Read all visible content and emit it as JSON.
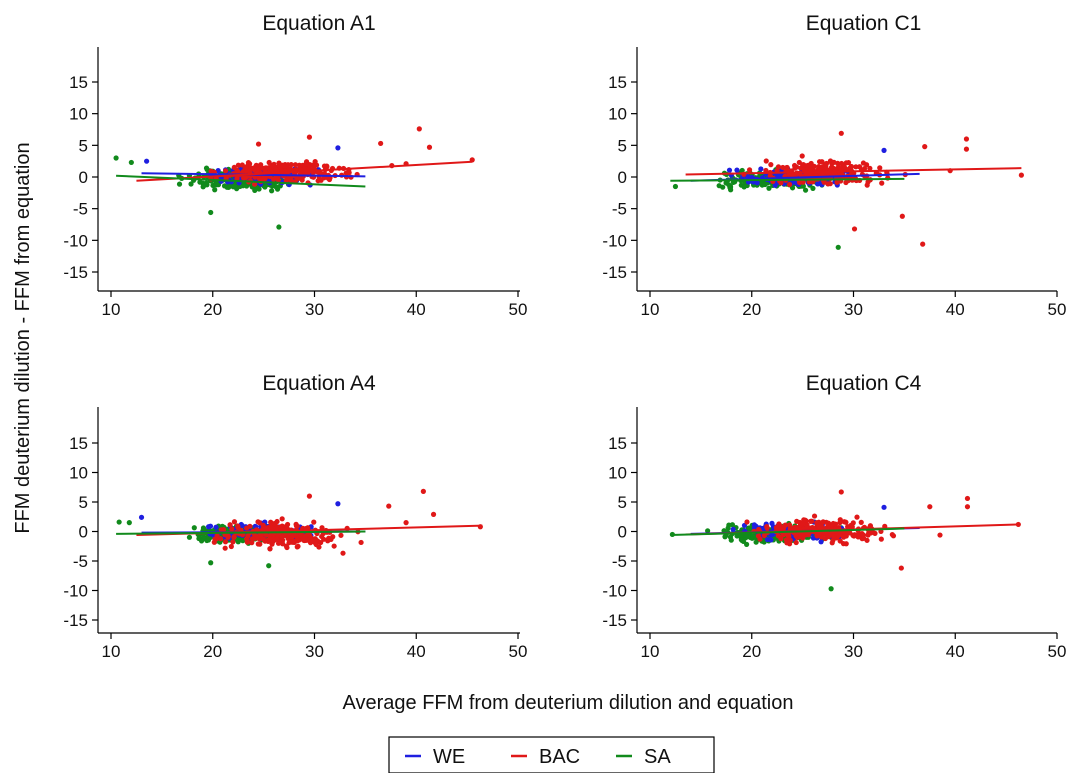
{
  "chart_data": [
    {
      "type": "scatter",
      "title": "Equation A1",
      "xlim": [
        10,
        50
      ],
      "ylim": [
        -15,
        15
      ],
      "xticks": [
        10,
        20,
        30,
        40,
        50
      ],
      "yticks": [
        -15,
        -10,
        -5,
        0,
        5,
        10,
        15
      ],
      "series": [
        {
          "name": "WE",
          "fit": {
            "x": [
              13,
              35
            ],
            "y": [
              0.6,
              0.1
            ]
          }
        },
        {
          "name": "BAC",
          "fit": {
            "x": [
              12.5,
              45.5
            ],
            "y": [
              -0.6,
              2.4
            ]
          }
        },
        {
          "name": "SA",
          "fit": {
            "x": [
              10.5,
              35
            ],
            "y": [
              0.2,
              -1.5
            ]
          }
        }
      ],
      "outliers": [
        {
          "series": "BAC",
          "x": 40.3,
          "y": 7.6
        },
        {
          "series": "BAC",
          "x": 41.3,
          "y": 4.7
        },
        {
          "series": "BAC",
          "x": 36.5,
          "y": 5.3
        },
        {
          "series": "BAC",
          "x": 29.5,
          "y": 6.3
        },
        {
          "series": "BAC",
          "x": 45.5,
          "y": 2.7
        },
        {
          "series": "BAC",
          "x": 39.0,
          "y": 2.1
        },
        {
          "series": "BAC",
          "x": 37.6,
          "y": 1.8
        },
        {
          "series": "BAC",
          "x": 24.5,
          "y": 5.2
        },
        {
          "series": "WE",
          "x": 32.3,
          "y": 4.6
        },
        {
          "series": "WE",
          "x": 13.5,
          "y": 2.5
        },
        {
          "series": "SA",
          "x": 10.5,
          "y": 3.0
        },
        {
          "series": "SA",
          "x": 12.0,
          "y": 2.3
        },
        {
          "series": "SA",
          "x": 19.8,
          "y": -5.6
        },
        {
          "series": "SA",
          "x": 26.5,
          "y": -7.9
        }
      ],
      "cloud": [
        {
          "series": "SA",
          "xmin": 15.5,
          "xmax": 30.0,
          "ymin": -2.6,
          "ymax": 1.8,
          "n": 240
        },
        {
          "series": "WE",
          "xmin": 17.0,
          "xmax": 32.0,
          "ymin": -2.0,
          "ymax": 2.2,
          "n": 120
        },
        {
          "series": "BAC",
          "xmin": 18.0,
          "xmax": 36.0,
          "ymin": -1.8,
          "ymax": 3.4,
          "n": 220
        }
      ]
    },
    {
      "type": "scatter",
      "title": "Equation C1",
      "xlim": [
        10,
        50
      ],
      "ylim": [
        -15,
        15
      ],
      "xticks": [
        10,
        20,
        30,
        40,
        50
      ],
      "yticks": [
        -15,
        -10,
        -5,
        0,
        5,
        10,
        15
      ],
      "series": [
        {
          "name": "WE",
          "fit": {
            "x": [
              14,
              36.5
            ],
            "y": [
              -0.6,
              0.5
            ]
          }
        },
        {
          "name": "BAC",
          "fit": {
            "x": [
              13.5,
              46.5
            ],
            "y": [
              0.4,
              1.4
            ]
          }
        },
        {
          "name": "SA",
          "fit": {
            "x": [
              12,
              35
            ],
            "y": [
              -0.6,
              -0.3
            ]
          }
        }
      ],
      "outliers": [
        {
          "series": "BAC",
          "x": 28.8,
          "y": 6.9
        },
        {
          "series": "BAC",
          "x": 41.1,
          "y": 6.0
        },
        {
          "series": "BAC",
          "x": 41.1,
          "y": 4.4
        },
        {
          "series": "BAC",
          "x": 37.0,
          "y": 4.8
        },
        {
          "series": "BAC",
          "x": 30.1,
          "y": -8.2
        },
        {
          "series": "BAC",
          "x": 36.8,
          "y": -10.6
        },
        {
          "series": "BAC",
          "x": 34.8,
          "y": -6.2
        },
        {
          "series": "BAC",
          "x": 46.5,
          "y": 0.3
        },
        {
          "series": "BAC",
          "x": 39.5,
          "y": 1.0
        },
        {
          "series": "WE",
          "x": 33.0,
          "y": 4.2
        },
        {
          "series": "SA",
          "x": 28.5,
          "y": -11.1
        },
        {
          "series": "SA",
          "x": 12.5,
          "y": -1.5
        }
      ],
      "cloud": [
        {
          "series": "SA",
          "xmin": 14.5,
          "xmax": 30.0,
          "ymin": -2.4,
          "ymax": 1.6,
          "n": 240
        },
        {
          "series": "WE",
          "xmin": 16.0,
          "xmax": 33.0,
          "ymin": -2.0,
          "ymax": 2.0,
          "n": 120
        },
        {
          "series": "BAC",
          "xmin": 18.0,
          "xmax": 36.0,
          "ymin": -2.2,
          "ymax": 3.6,
          "n": 220
        }
      ]
    },
    {
      "type": "scatter",
      "title": "Equation A4",
      "xlim": [
        10,
        50
      ],
      "ylim": [
        -15,
        15
      ],
      "xticks": [
        10,
        20,
        30,
        40,
        50
      ],
      "yticks": [
        -15,
        -10,
        -5,
        0,
        5,
        10,
        15
      ],
      "series": [
        {
          "name": "WE",
          "fit": {
            "x": [
              13,
              35
            ],
            "y": [
              -0.2,
              0.0
            ]
          }
        },
        {
          "name": "BAC",
          "fit": {
            "x": [
              12.5,
              46.5
            ],
            "y": [
              -0.6,
              1.0
            ]
          }
        },
        {
          "name": "SA",
          "fit": {
            "x": [
              10.5,
              35
            ],
            "y": [
              -0.4,
              0.0
            ]
          }
        }
      ],
      "outliers": [
        {
          "series": "BAC",
          "x": 40.7,
          "y": 6.8
        },
        {
          "series": "BAC",
          "x": 41.7,
          "y": 2.9
        },
        {
          "series": "BAC",
          "x": 37.3,
          "y": 4.3
        },
        {
          "series": "BAC",
          "x": 29.5,
          "y": 6.0
        },
        {
          "series": "BAC",
          "x": 46.3,
          "y": 0.8
        },
        {
          "series": "BAC",
          "x": 39.0,
          "y": 1.5
        },
        {
          "series": "WE",
          "x": 32.3,
          "y": 4.7
        },
        {
          "series": "WE",
          "x": 13.0,
          "y": 2.4
        },
        {
          "series": "SA",
          "x": 10.8,
          "y": 1.6
        },
        {
          "series": "SA",
          "x": 11.8,
          "y": 1.5
        },
        {
          "series": "SA",
          "x": 19.8,
          "y": -5.3
        },
        {
          "series": "SA",
          "x": 25.5,
          "y": -5.8
        }
      ],
      "cloud": [
        {
          "series": "SA",
          "xmin": 15.5,
          "xmax": 30.0,
          "ymin": -2.4,
          "ymax": 1.6,
          "n": 240
        },
        {
          "series": "WE",
          "xmin": 17.0,
          "xmax": 33.0,
          "ymin": -2.0,
          "ymax": 2.0,
          "n": 120
        },
        {
          "series": "BAC",
          "xmin": 18.0,
          "xmax": 35.0,
          "ymin": -3.8,
          "ymax": 2.6,
          "n": 220
        }
      ]
    },
    {
      "type": "scatter",
      "title": "Equation C4",
      "xlim": [
        10,
        50
      ],
      "ylim": [
        -15,
        15
      ],
      "xticks": [
        10,
        20,
        30,
        40,
        50
      ],
      "yticks": [
        -15,
        -10,
        -5,
        0,
        5,
        10,
        15
      ],
      "series": [
        {
          "name": "WE",
          "fit": {
            "x": [
              14,
              36.5
            ],
            "y": [
              -0.4,
              0.6
            ]
          }
        },
        {
          "name": "BAC",
          "fit": {
            "x": [
              13.5,
              46.3
            ],
            "y": [
              -0.5,
              1.2
            ]
          }
        },
        {
          "name": "SA",
          "fit": {
            "x": [
              12,
              35
            ],
            "y": [
              -0.6,
              0.5
            ]
          }
        }
      ],
      "outliers": [
        {
          "series": "BAC",
          "x": 28.8,
          "y": 6.7
        },
        {
          "series": "BAC",
          "x": 41.2,
          "y": 5.6
        },
        {
          "series": "BAC",
          "x": 41.2,
          "y": 4.2
        },
        {
          "series": "BAC",
          "x": 37.5,
          "y": 4.2
        },
        {
          "series": "BAC",
          "x": 34.7,
          "y": -6.2
        },
        {
          "series": "BAC",
          "x": 46.2,
          "y": 1.2
        },
        {
          "series": "BAC",
          "x": 38.5,
          "y": -0.6
        },
        {
          "series": "WE",
          "x": 33.0,
          "y": 4.1
        },
        {
          "series": "SA",
          "x": 27.8,
          "y": -9.7
        },
        {
          "series": "SA",
          "x": 12.2,
          "y": -0.5
        }
      ],
      "cloud": [
        {
          "series": "SA",
          "xmin": 14.5,
          "xmax": 30.0,
          "ymin": -2.6,
          "ymax": 2.0,
          "n": 240
        },
        {
          "series": "WE",
          "xmin": 16.0,
          "xmax": 33.0,
          "ymin": -2.0,
          "ymax": 2.2,
          "n": 120
        },
        {
          "series": "BAC",
          "xmin": 18.0,
          "xmax": 36.0,
          "ymin": -2.8,
          "ymax": 3.0,
          "n": 220
        }
      ]
    }
  ],
  "labels": {
    "ylabel": "FFM deuterium dilution - FFM from equation",
    "xlabel": "Average FFM from deuterium dilution and equation"
  },
  "legend": {
    "placement": "bottom-center",
    "items": [
      {
        "name": "WE",
        "color": "#1f1fe0"
      },
      {
        "name": "BAC",
        "color": "#e01818"
      },
      {
        "name": "SA",
        "color": "#118a1c"
      }
    ]
  },
  "colors": {
    "WE": "#1f1fe0",
    "BAC": "#e01818",
    "SA": "#118a1c"
  }
}
